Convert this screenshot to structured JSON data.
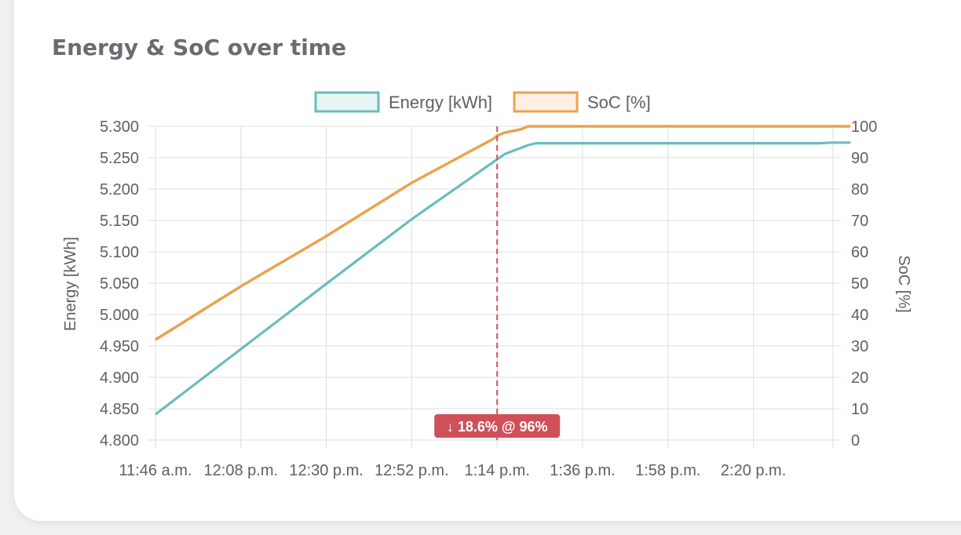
{
  "card": {
    "title": "Energy & SoC over time"
  },
  "chart_data": {
    "type": "line",
    "legend_position": "top-center",
    "grid": true,
    "x_ticks": [
      "11:46 a.m.",
      "12:08 p.m.",
      "12:30 p.m.",
      "12:52 p.m.",
      "1:14 p.m.",
      "1:36 p.m.",
      "1:58 p.m.",
      "2:20 p.m."
    ],
    "x_range": [
      "11:46",
      "2:45"
    ],
    "y_left": {
      "label": "Energy [kWh]",
      "range": [
        4.8,
        5.3
      ],
      "ticks": [
        "5.300",
        "5.250",
        "5.200",
        "5.150",
        "5.100",
        "5.050",
        "5.000",
        "4.950",
        "4.900",
        "4.850",
        "4.800"
      ]
    },
    "y_right": {
      "label": "SoC [%]",
      "range": [
        0,
        100
      ],
      "ticks": [
        "100",
        "90",
        "80",
        "70",
        "60",
        "50",
        "40",
        "30",
        "20",
        "10",
        "0"
      ]
    },
    "series": [
      {
        "name": "Energy [kWh]",
        "axis": "left",
        "color": "#6bbcbc",
        "points": [
          [
            "11:46",
            4.841
          ],
          [
            "12:08",
            4.945
          ],
          [
            "12:30",
            5.049
          ],
          [
            "12:52",
            5.152
          ],
          [
            "1:13",
            5.243
          ],
          [
            "1:16",
            5.256
          ],
          [
            "1:22",
            5.27
          ],
          [
            "1:24",
            5.273
          ],
          [
            "2:37",
            5.273
          ],
          [
            "2:40",
            5.274
          ],
          [
            "2:45",
            5.274
          ]
        ]
      },
      {
        "name": "SoC [%]",
        "axis": "right",
        "color": "#eba24f",
        "stepped": true,
        "points": [
          [
            "11:46",
            32
          ],
          [
            "12:08",
            49
          ],
          [
            "12:30",
            65
          ],
          [
            "12:52",
            82
          ],
          [
            "1:13",
            96
          ],
          [
            "1:14",
            97
          ],
          [
            "1:16",
            98
          ],
          [
            "1:20",
            99
          ],
          [
            "1:22",
            100
          ],
          [
            "2:45",
            100
          ]
        ]
      }
    ],
    "annotation": {
      "x": "1:14",
      "label": "↓ 18.6% @ 96%",
      "color": "#d0505a"
    }
  }
}
